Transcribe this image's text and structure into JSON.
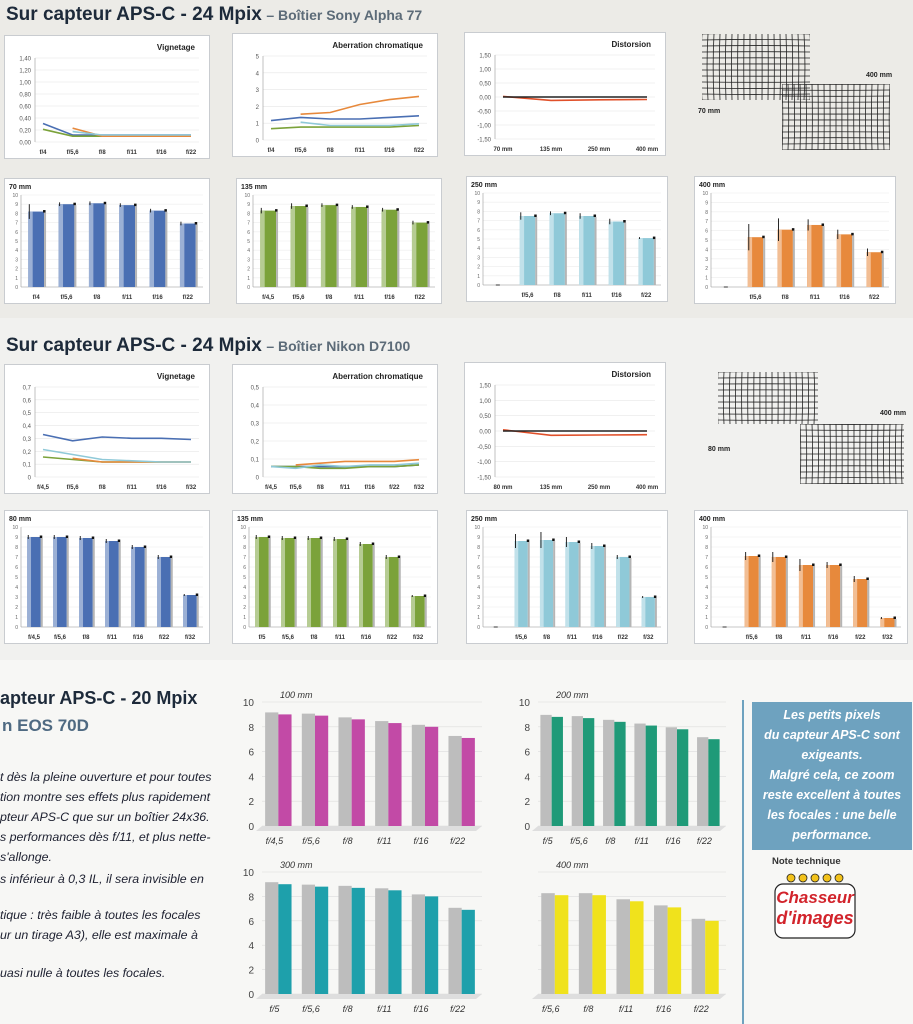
{
  "sections": {
    "sony": {
      "title": "Sur capteur APS-C - 24 Mpix",
      "subtitle": "– Boîtier Sony Alpha 77"
    },
    "nikon": {
      "title": "Sur capteur APS-C - 24 Mpix",
      "subtitle": "– Boîtier Nikon D7100"
    },
    "canon": {
      "title": "apteur APS-C - 20 Mpix",
      "subtitle": "n EOS 70D"
    }
  },
  "grid_labels": {
    "sony_focal_a": "70 mm",
    "sony_focal_b": "400 mm",
    "nikon_focal_a": "80 mm",
    "nikon_focal_b": "400 mm"
  },
  "article_lines": [
    "t dès la pleine ouverture et pour toutes",
    "tion montre ses effets plus rapidement",
    "pteur APS-C que sur un boîtier 24x36.",
    "s performances dès f/11, et plus nette-",
    "s'allonge.",
    "s inférieur à 0,3 IL, il sera invisible en",
    "tique : très faible à toutes les focales",
    "ur un tirage A3), elle est maximale à",
    "",
    "uasi nulle à toutes les focales."
  ],
  "callout": {
    "lines": [
      "Les petits pixels",
      "du capteur APS-C sont",
      "exigeants.",
      "Malgré cela, ce zoom",
      "reste excellent à toutes",
      "les focales : une belle",
      "performance."
    ]
  },
  "note": {
    "label": "Note technique",
    "logo_line1": "Chasseur",
    "logo_line2": "d'images"
  },
  "colors": {
    "sony_70": "#4a6fb3",
    "sony_135": "#7ba23a",
    "sony_250": "#8fc9d8",
    "sony_400": "#e7893c",
    "canon_100": "#c24aa6",
    "canon_200": "#1f9a78",
    "canon_300": "#1ea0ab",
    "canon_400": "#f0e21c",
    "gray_bar": "#b9b9b9"
  },
  "chart_data": [
    {
      "id": "sony_vignetage",
      "type": "line",
      "title": "Vignetage",
      "categories": [
        "f/4",
        "f/5,6",
        "f/8",
        "f/11",
        "f/16",
        "f/22"
      ],
      "yticks": [
        "0,00",
        "0,20",
        "0,40",
        "0,60",
        "0,80",
        "1,00",
        "1,20",
        "1,40"
      ],
      "ylim": [
        0,
        1.45
      ],
      "series": [
        {
          "color": "#4a6fb3",
          "values": [
            0.32,
            0.12,
            0.12,
            0.12,
            0.12,
            0.12
          ]
        },
        {
          "color": "#7ba23a",
          "values": [
            0.22,
            0.1,
            0.1,
            0.1,
            0.1,
            0.1
          ]
        },
        {
          "color": "#e7893c",
          "values": [
            null,
            0.24,
            0.1,
            0.1,
            0.1,
            0.1
          ]
        },
        {
          "color": "#8fc9d8",
          "values": [
            null,
            0.18,
            0.12,
            0.12,
            0.12,
            0.12
          ]
        }
      ]
    },
    {
      "id": "sony_aberration",
      "type": "line",
      "title": "Aberration chromatique",
      "categories": [
        "f/4",
        "f/5,6",
        "f/8",
        "f/11",
        "f/16",
        "f/22"
      ],
      "yticks": [
        "0",
        "1",
        "2",
        "3",
        "4",
        "5"
      ],
      "ylim": [
        0,
        5.2
      ],
      "series": [
        {
          "color": "#4a6fb3",
          "values": [
            1.2,
            1.4,
            1.3,
            1.3,
            1.4,
            1.5
          ]
        },
        {
          "color": "#7ba23a",
          "values": [
            0.7,
            0.8,
            0.8,
            0.8,
            0.8,
            0.9
          ]
        },
        {
          "color": "#e7893c",
          "values": [
            null,
            1.6,
            1.7,
            2.2,
            2.5,
            2.7
          ]
        },
        {
          "color": "#8fc9d8",
          "values": [
            null,
            1.1,
            0.9,
            0.9,
            0.9,
            1.0
          ]
        }
      ]
    },
    {
      "id": "sony_distorsion",
      "type": "line",
      "title": "Distorsion",
      "categories": [
        "70 mm",
        "135 mm",
        "250 mm",
        "400 mm"
      ],
      "yticks": [
        "-1,50",
        "-1,00",
        "-0,50",
        "0,00",
        "0,50",
        "1,00",
        "1,50"
      ],
      "ylim": [
        -1.5,
        1.5
      ],
      "series": [
        {
          "color": "#e0502a",
          "values": [
            0.02,
            -0.12,
            -0.1,
            -0.09
          ]
        },
        {
          "color": "#222222",
          "values": [
            0.0,
            0.0,
            0.0,
            0.0
          ]
        }
      ]
    },
    {
      "id": "sony_70",
      "type": "bar",
      "title": "70 mm",
      "categories": [
        "f/4",
        "f/5,6",
        "f/8",
        "f/11",
        "f/16",
        "f/22"
      ],
      "values": [
        8.2,
        9.0,
        9.1,
        8.9,
        8.3,
        6.9
      ],
      "errors": [
        0.8,
        0.2,
        0.2,
        0.2,
        0.2,
        0.2
      ],
      "ylim": [
        0,
        10
      ],
      "color": "#4a6fb3"
    },
    {
      "id": "sony_135",
      "type": "bar",
      "title": "135 mm",
      "categories": [
        "f/4,5",
        "f/5,6",
        "f/8",
        "f/11",
        "f/16",
        "f/22"
      ],
      "values": [
        8.3,
        8.8,
        8.9,
        8.7,
        8.4,
        7.0
      ],
      "errors": [
        0.3,
        0.3,
        0.2,
        0.2,
        0.2,
        0.2
      ],
      "ylim": [
        0,
        10
      ],
      "color": "#7ba23a"
    },
    {
      "id": "sony_250",
      "type": "bar",
      "title": "250 mm",
      "categories": [
        "",
        "f/5,6",
        "f/8",
        "f/11",
        "f/16",
        "f/22"
      ],
      "values": [
        null,
        7.5,
        7.8,
        7.5,
        6.9,
        5.1
      ],
      "errors": [
        0,
        0.4,
        0.2,
        0.3,
        0.3,
        0.1
      ],
      "ylim": [
        0,
        10
      ],
      "color": "#8fc9d8"
    },
    {
      "id": "sony_400",
      "type": "bar",
      "title": "400 mm",
      "categories": [
        "",
        "f/5,6",
        "f/8",
        "f/11",
        "f/16",
        "f/22"
      ],
      "values": [
        null,
        5.3,
        6.1,
        6.6,
        5.6,
        3.7
      ],
      "errors": [
        0,
        1.4,
        1.2,
        0.6,
        0.5,
        0.4
      ],
      "ylim": [
        0,
        10
      ],
      "color": "#e7893c"
    },
    {
      "id": "nikon_vignetage",
      "type": "line",
      "title": "Vignetage",
      "categories": [
        "f/4,5",
        "f/5,6",
        "f/8",
        "f/11",
        "f/16",
        "f/32"
      ],
      "yticks": [
        "0",
        "0,1",
        "0,2",
        "0,3",
        "0,4",
        "0,5",
        "0,6",
        "0,7"
      ],
      "ylim": [
        0,
        0.72
      ],
      "series": [
        {
          "color": "#4a6fb3",
          "values": [
            0.34,
            0.29,
            0.32,
            0.31,
            0.31,
            0.3
          ]
        },
        {
          "color": "#7ba23a",
          "values": [
            0.16,
            0.14,
            0.12,
            0.12,
            0.12,
            0.12
          ]
        },
        {
          "color": "#e7893c",
          "values": [
            null,
            0.15,
            0.12,
            0.12,
            0.12,
            0.12
          ]
        },
        {
          "color": "#8fc9d8",
          "values": [
            0.22,
            0.18,
            0.14,
            0.13,
            0.12,
            0.12
          ]
        }
      ]
    },
    {
      "id": "nikon_aberration",
      "type": "line",
      "title": "Aberration chromatique",
      "categories": [
        "f/4,5",
        "f/5,6",
        "f/8",
        "f/11",
        "f/16",
        "f/22",
        "f/32"
      ],
      "yticks": [
        "0",
        "0,1",
        "0,2",
        "0,3",
        "0,4",
        "0,5"
      ],
      "ylim": [
        0,
        0.52
      ],
      "series": [
        {
          "color": "#4a6fb3",
          "values": [
            0.06,
            0.06,
            0.06,
            0.06,
            0.06,
            0.06,
            0.07
          ]
        },
        {
          "color": "#7ba23a",
          "values": [
            0.06,
            0.06,
            0.05,
            0.05,
            0.06,
            0.06,
            0.07
          ]
        },
        {
          "color": "#e7893c",
          "values": [
            null,
            0.07,
            0.08,
            0.09,
            0.09,
            0.09,
            0.1
          ]
        },
        {
          "color": "#8fc9d8",
          "values": [
            0.06,
            0.05,
            0.07,
            0.06,
            0.07,
            0.07,
            0.08
          ]
        }
      ]
    },
    {
      "id": "nikon_distorsion",
      "type": "line",
      "title": "Distorsion",
      "categories": [
        "80 mm",
        "135 mm",
        "250 mm",
        "400 mm"
      ],
      "yticks": [
        "-1,50",
        "-1,00",
        "-0,50",
        "0,00",
        "0,50",
        "1,00",
        "1,50"
      ],
      "ylim": [
        -1.5,
        1.5
      ],
      "series": [
        {
          "color": "#e0502a",
          "values": [
            0.04,
            -0.14,
            -0.13,
            -0.12
          ]
        },
        {
          "color": "#222222",
          "values": [
            0.0,
            0.0,
            0.0,
            0.0
          ]
        }
      ]
    },
    {
      "id": "nikon_80",
      "type": "bar",
      "title": "80 mm",
      "categories": [
        "f/4,5",
        "f/5,6",
        "f/8",
        "f/11",
        "f/16",
        "f/22",
        "f/32"
      ],
      "values": [
        9.0,
        9.0,
        8.9,
        8.6,
        8.0,
        7.0,
        3.2
      ],
      "errors": [
        0.2,
        0.2,
        0.2,
        0.2,
        0.2,
        0.2,
        0.1
      ],
      "ylim": [
        0,
        10
      ],
      "color": "#4a6fb3"
    },
    {
      "id": "nikon_135",
      "type": "bar",
      "title": "135 mm",
      "categories": [
        "f/5",
        "f/5,6",
        "f/8",
        "f/11",
        "f/16",
        "f/22",
        "f/32"
      ],
      "values": [
        9.0,
        8.9,
        8.9,
        8.8,
        8.3,
        7.0,
        3.1
      ],
      "errors": [
        0.2,
        0.2,
        0.2,
        0.2,
        0.2,
        0.2,
        0.1
      ],
      "ylim": [
        0,
        10
      ],
      "color": "#7ba23a"
    },
    {
      "id": "nikon_250",
      "type": "bar",
      "title": "250 mm",
      "categories": [
        "",
        "f/5,6",
        "f/8",
        "f/11",
        "f/16",
        "f/22",
        "f/32"
      ],
      "values": [
        null,
        8.6,
        8.7,
        8.5,
        8.1,
        7.0,
        3.0
      ],
      "errors": [
        0,
        0.7,
        0.8,
        0.5,
        0.3,
        0.2,
        0.1
      ],
      "ylim": [
        0,
        10
      ],
      "color": "#8fc9d8"
    },
    {
      "id": "nikon_400",
      "type": "bar",
      "title": "400 mm",
      "categories": [
        "",
        "f/5,6",
        "f/8",
        "f/11",
        "f/16",
        "f/22",
        "f/32"
      ],
      "values": [
        null,
        7.1,
        7.0,
        6.2,
        6.2,
        4.8,
        0.9
      ],
      "errors": [
        0,
        0.4,
        0.5,
        0.6,
        0.3,
        0.3,
        0.1
      ],
      "ylim": [
        0,
        10
      ],
      "color": "#e7893c"
    },
    {
      "id": "canon_100",
      "type": "bar3d",
      "title": "100 mm",
      "categories": [
        "f/4,5",
        "f/5,6",
        "f/8",
        "f/11",
        "f/16",
        "f/22"
      ],
      "values": [
        9.0,
        8.9,
        8.6,
        8.3,
        8.0,
        7.1
      ],
      "ylim": [
        0,
        10
      ],
      "yticks": [
        "0",
        "2",
        "4",
        "6",
        "8",
        "10"
      ],
      "color": "#c24aa6"
    },
    {
      "id": "canon_200",
      "type": "bar3d",
      "title": "200 mm",
      "categories": [
        "f/5",
        "f/5,6",
        "f/8",
        "f/11",
        "f/16",
        "f/22"
      ],
      "values": [
        8.8,
        8.7,
        8.4,
        8.1,
        7.8,
        7.0
      ],
      "ylim": [
        0,
        10
      ],
      "yticks": [
        "0",
        "2",
        "4",
        "6",
        "8",
        "10"
      ],
      "color": "#1f9a78"
    },
    {
      "id": "canon_300",
      "type": "bar3d",
      "title": "300 mm",
      "categories": [
        "f/5",
        "f/5,6",
        "f/8",
        "f/11",
        "f/16",
        "f/22"
      ],
      "values": [
        9.0,
        8.8,
        8.7,
        8.5,
        8.0,
        6.9
      ],
      "ylim": [
        0,
        10
      ],
      "yticks": [
        "0",
        "2",
        "4",
        "6",
        "8",
        "10"
      ],
      "color": "#1ea0ab"
    },
    {
      "id": "canon_400",
      "type": "bar3d",
      "title": "400 mm",
      "categories": [
        "f/5,6",
        "f/8",
        "f/11",
        "f/16",
        "f/22"
      ],
      "values": [
        8.1,
        8.1,
        7.6,
        7.1,
        6.0
      ],
      "ylim": [
        0,
        10
      ],
      "yticks": [],
      "color": "#f0e21c"
    }
  ]
}
